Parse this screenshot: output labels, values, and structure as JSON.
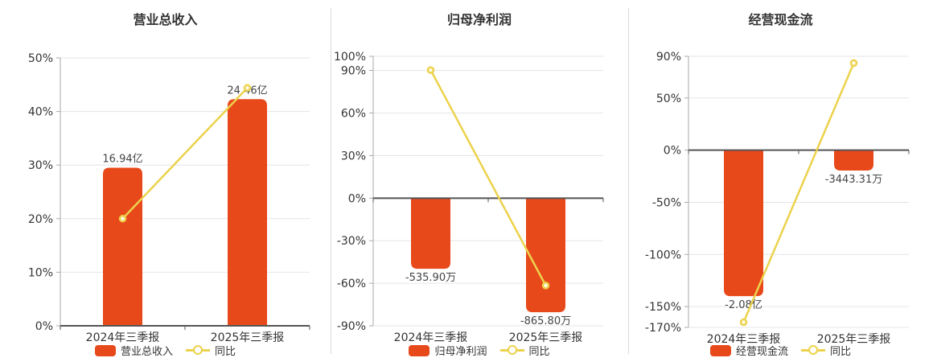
{
  "page": {
    "background": "#ffffff"
  },
  "colors": {
    "bar": "#e8491b",
    "line": "#ecd24c",
    "marker_fill": "#fffbe8",
    "grid_line": "#e5e5e9",
    "axis_line": "#aaaaaa",
    "zero_line": "#555555",
    "text": "#333333",
    "value_label": "#444444",
    "divider": "#d8d8d8"
  },
  "chart_data": [
    {
      "type": "bar",
      "title": "营业总收入",
      "categories": [
        "2024年三季报",
        "2025年三季报"
      ],
      "y_axis": {
        "unit": "%",
        "min": 0,
        "max": 50,
        "ticks": [
          50,
          40,
          30,
          20,
          10,
          0
        ]
      },
      "grid": true,
      "legend_position": "bottom",
      "series": [
        {
          "kind": "bar",
          "name": "营业总收入",
          "value_labels": [
            "16.94亿",
            "24.46亿"
          ],
          "plotted_axis_values": [
            29.5,
            42.3
          ]
        },
        {
          "kind": "line",
          "name": "同比",
          "unit": "%",
          "values": [
            20.0,
            44.4
          ]
        }
      ]
    },
    {
      "type": "bar",
      "title": "归母净利润",
      "categories": [
        "2024年三季报",
        "2025年三季报"
      ],
      "y_axis": {
        "unit": "%",
        "min": -90,
        "max": 100,
        "ticks": [
          100,
          90,
          60,
          30,
          0,
          -30,
          -60,
          -90
        ]
      },
      "grid": true,
      "legend_position": "bottom",
      "series": [
        {
          "kind": "bar",
          "name": "归母净利润",
          "value_labels": [
            "-535.90万",
            "-865.80万"
          ],
          "plotted_axis_values": [
            -49.8,
            -80.4
          ]
        },
        {
          "kind": "line",
          "name": "同比",
          "unit": "%",
          "values": [
            90.3,
            -61.6
          ]
        }
      ]
    },
    {
      "type": "bar",
      "title": "经营现金流",
      "categories": [
        "2024年三季报",
        "2025年三季报"
      ],
      "y_axis": {
        "unit": "%",
        "min": -170,
        "max": 90,
        "ticks": [
          90,
          50,
          0,
          -50,
          -100,
          -150,
          -170
        ]
      },
      "grid": true,
      "legend_position": "bottom",
      "series": [
        {
          "kind": "bar",
          "name": "经营现金流",
          "value_labels": [
            "-2.08亿",
            "-3443.31万"
          ],
          "plotted_axis_values": [
            -140.0,
            -19.6
          ]
        },
        {
          "kind": "line",
          "name": "同比",
          "unit": "%",
          "values": [
            -165.0,
            83.5
          ]
        }
      ]
    }
  ]
}
